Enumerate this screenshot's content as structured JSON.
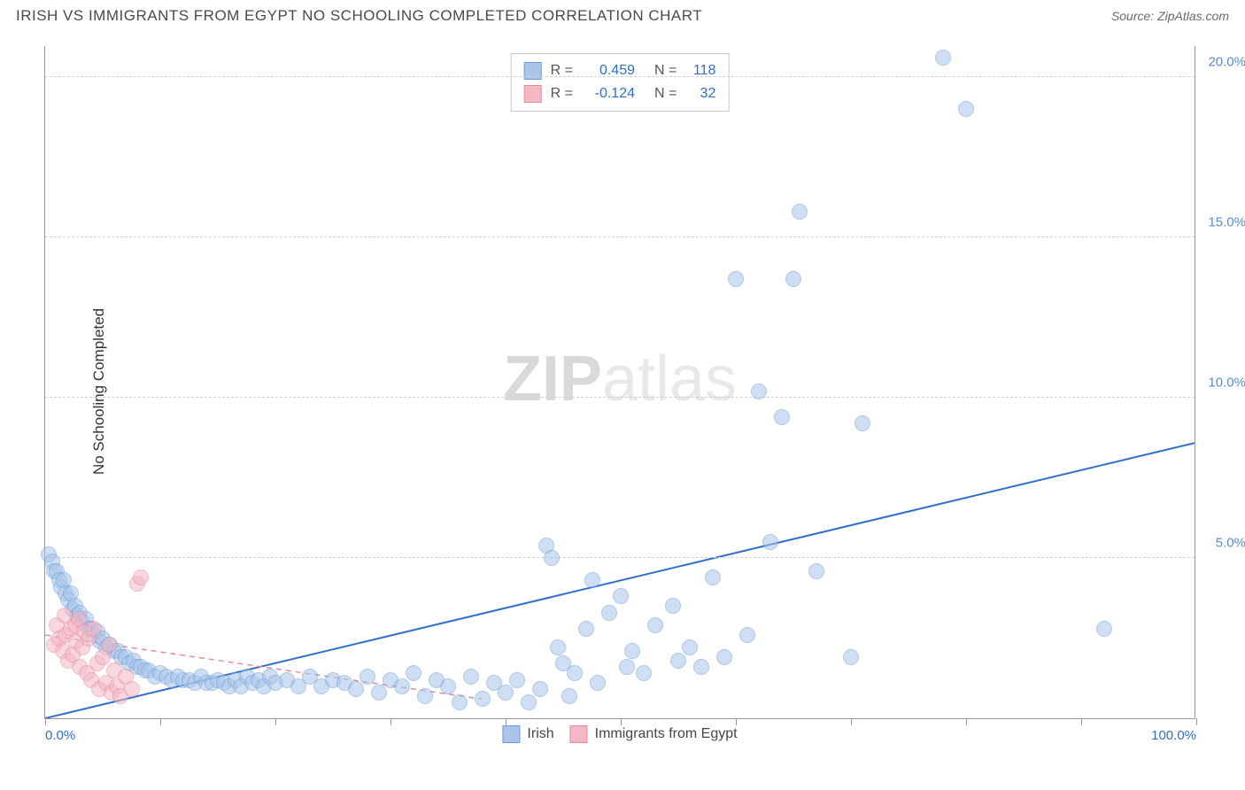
{
  "header": {
    "title": "IRISH VS IMMIGRANTS FROM EGYPT NO SCHOOLING COMPLETED CORRELATION CHART",
    "source": "Source: ZipAtlas.com"
  },
  "watermark": {
    "part1": "ZIP",
    "part2": "atlas"
  },
  "ylabel": "No Schooling Completed",
  "chart": {
    "type": "scatter",
    "xlim": [
      0,
      100
    ],
    "ylim": [
      0,
      21
    ],
    "xticks": [
      0,
      10,
      20,
      30,
      40,
      50,
      60,
      70,
      80,
      90,
      100
    ],
    "xtick_labels": {
      "0": "0.0%",
      "100": "100.0%"
    },
    "yticks": [
      5,
      10,
      15,
      20
    ],
    "ytick_labels": {
      "5": "5.0%",
      "10": "10.0%",
      "15": "15.0%",
      "20": "20.0%"
    },
    "background_color": "#ffffff",
    "grid_color": "#d0d0d0",
    "axis_color": "#999999",
    "x_label_color": "#2f6fd0",
    "y_label_color": "#5b8bd4",
    "marker_radius": 9,
    "marker_opacity": 0.55,
    "series": [
      {
        "name": "Irish",
        "fill_color": "#a9c6ea",
        "stroke_color": "#6d9cd6",
        "r": 0.459,
        "n": 118,
        "trend": {
          "x1": 0,
          "y1": 0.0,
          "x2": 100,
          "y2": 8.6,
          "color": "#2f6fd0",
          "width": 2,
          "dash": "none"
        },
        "points": [
          [
            0.3,
            5.1
          ],
          [
            0.6,
            4.9
          ],
          [
            0.8,
            4.6
          ],
          [
            1.0,
            4.6
          ],
          [
            1.2,
            4.3
          ],
          [
            1.4,
            4.1
          ],
          [
            1.6,
            4.3
          ],
          [
            1.8,
            3.9
          ],
          [
            2.0,
            3.7
          ],
          [
            2.2,
            3.9
          ],
          [
            2.4,
            3.4
          ],
          [
            2.6,
            3.5
          ],
          [
            2.8,
            3.2
          ],
          [
            3.0,
            3.3
          ],
          [
            3.2,
            3.0
          ],
          [
            3.5,
            3.1
          ],
          [
            3.8,
            2.8
          ],
          [
            4.0,
            2.8
          ],
          [
            4.2,
            2.6
          ],
          [
            4.5,
            2.7
          ],
          [
            4.8,
            2.4
          ],
          [
            5.0,
            2.5
          ],
          [
            5.3,
            2.2
          ],
          [
            5.6,
            2.3
          ],
          [
            6.0,
            2.1
          ],
          [
            6.3,
            2.1
          ],
          [
            6.6,
            1.9
          ],
          [
            7.0,
            1.9
          ],
          [
            7.3,
            1.7
          ],
          [
            7.7,
            1.8
          ],
          [
            8.0,
            1.6
          ],
          [
            8.3,
            1.6
          ],
          [
            8.7,
            1.5
          ],
          [
            9.0,
            1.5
          ],
          [
            9.5,
            1.3
          ],
          [
            10.0,
            1.4
          ],
          [
            10.5,
            1.3
          ],
          [
            11.0,
            1.2
          ],
          [
            11.5,
            1.3
          ],
          [
            12.0,
            1.2
          ],
          [
            12.5,
            1.2
          ],
          [
            13.0,
            1.1
          ],
          [
            13.5,
            1.3
          ],
          [
            14.0,
            1.1
          ],
          [
            14.5,
            1.1
          ],
          [
            15.0,
            1.2
          ],
          [
            15.5,
            1.1
          ],
          [
            16.0,
            1.0
          ],
          [
            16.5,
            1.2
          ],
          [
            17.0,
            1.0
          ],
          [
            17.5,
            1.3
          ],
          [
            18.0,
            1.1
          ],
          [
            18.5,
            1.2
          ],
          [
            19.0,
            1.0
          ],
          [
            19.5,
            1.3
          ],
          [
            20.0,
            1.1
          ],
          [
            21.0,
            1.2
          ],
          [
            22.0,
            1.0
          ],
          [
            23.0,
            1.3
          ],
          [
            24.0,
            1.0
          ],
          [
            25.0,
            1.2
          ],
          [
            26.0,
            1.1
          ],
          [
            27.0,
            0.9
          ],
          [
            28.0,
            1.3
          ],
          [
            29.0,
            0.8
          ],
          [
            30.0,
            1.2
          ],
          [
            31.0,
            1.0
          ],
          [
            32.0,
            1.4
          ],
          [
            33.0,
            0.7
          ],
          [
            34.0,
            1.2
          ],
          [
            35.0,
            1.0
          ],
          [
            36.0,
            0.5
          ],
          [
            37.0,
            1.3
          ],
          [
            38.0,
            0.6
          ],
          [
            39.0,
            1.1
          ],
          [
            40.0,
            0.8
          ],
          [
            41.0,
            1.2
          ],
          [
            42.0,
            0.5
          ],
          [
            43.0,
            0.9
          ],
          [
            43.5,
            5.4
          ],
          [
            44.0,
            5.0
          ],
          [
            44.5,
            2.2
          ],
          [
            45.0,
            1.7
          ],
          [
            45.5,
            0.7
          ],
          [
            46.0,
            1.4
          ],
          [
            47.0,
            2.8
          ],
          [
            47.5,
            4.3
          ],
          [
            48.0,
            1.1
          ],
          [
            49.0,
            3.3
          ],
          [
            50.0,
            3.8
          ],
          [
            50.5,
            1.6
          ],
          [
            51.0,
            2.1
          ],
          [
            52.0,
            1.4
          ],
          [
            53.0,
            2.9
          ],
          [
            54.5,
            3.5
          ],
          [
            55.0,
            1.8
          ],
          [
            56.0,
            2.2
          ],
          [
            57.0,
            1.6
          ],
          [
            58.0,
            4.4
          ],
          [
            59.0,
            1.9
          ],
          [
            60.0,
            13.7
          ],
          [
            61.0,
            2.6
          ],
          [
            62.0,
            10.2
          ],
          [
            63.0,
            5.5
          ],
          [
            64.0,
            9.4
          ],
          [
            65.0,
            13.7
          ],
          [
            65.5,
            15.8
          ],
          [
            67.0,
            4.6
          ],
          [
            70.0,
            1.9
          ],
          [
            71.0,
            9.2
          ],
          [
            78.0,
            20.6
          ],
          [
            80.0,
            19.0
          ],
          [
            92.0,
            2.8
          ]
        ]
      },
      {
        "name": "Immigrants from Egypt",
        "fill_color": "#f4b8c4",
        "stroke_color": "#e78aa0",
        "r": -0.124,
        "n": 32,
        "trend": {
          "x1": 0,
          "y1": 2.6,
          "x2": 38,
          "y2": 0.6,
          "color": "#e78aa0",
          "width": 1.5,
          "dash": "6,5"
        },
        "points": [
          [
            0.8,
            2.3
          ],
          [
            1.0,
            2.9
          ],
          [
            1.2,
            2.5
          ],
          [
            1.5,
            2.1
          ],
          [
            1.7,
            3.2
          ],
          [
            1.8,
            2.6
          ],
          [
            2.0,
            1.8
          ],
          [
            2.2,
            2.8
          ],
          [
            2.4,
            2.0
          ],
          [
            2.6,
            2.9
          ],
          [
            2.7,
            2.4
          ],
          [
            2.9,
            3.1
          ],
          [
            3.0,
            1.6
          ],
          [
            3.2,
            2.2
          ],
          [
            3.4,
            2.7
          ],
          [
            3.6,
            1.4
          ],
          [
            3.8,
            2.5
          ],
          [
            4.0,
            1.2
          ],
          [
            4.2,
            2.8
          ],
          [
            4.5,
            1.7
          ],
          [
            4.7,
            0.9
          ],
          [
            5.0,
            1.9
          ],
          [
            5.3,
            1.1
          ],
          [
            5.5,
            2.3
          ],
          [
            5.8,
            0.8
          ],
          [
            6.0,
            1.5
          ],
          [
            6.2,
            1.0
          ],
          [
            6.5,
            0.7
          ],
          [
            7.0,
            1.3
          ],
          [
            7.5,
            0.9
          ],
          [
            8.0,
            4.2
          ],
          [
            8.3,
            4.4
          ]
        ]
      }
    ]
  },
  "legend_top_labels": {
    "R": "R =",
    "N": "N ="
  },
  "colors": {
    "blue_value": "#2f6fd0",
    "text_muted": "#555555"
  }
}
